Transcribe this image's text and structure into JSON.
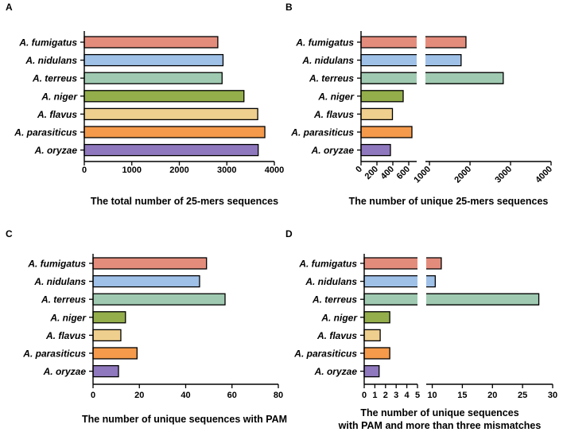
{
  "species": [
    "A. fumigatus",
    "A. nidulans",
    "A. terreus",
    "A. niger",
    "A.  flavus",
    "A. parasiticus",
    "A. oryzae"
  ],
  "colors": [
    "#e48c7c",
    "#9fc1e8",
    "#9fcab1",
    "#93ae4a",
    "#efcf8d",
    "#f59a4b",
    "#8f78bd"
  ],
  "chart_data": [
    {
      "panel": "A",
      "type": "bar",
      "orientation": "horizontal",
      "title": "The total number of 25-mers sequences",
      "xlim": [
        0,
        4000
      ],
      "ticks": [
        0,
        1000,
        2000,
        3000,
        4000
      ],
      "tick_labels": [
        "0",
        "1000",
        "2000",
        "3000",
        "4000"
      ],
      "values": [
        2810,
        2920,
        2900,
        3360,
        3650,
        3800,
        3660
      ]
    },
    {
      "panel": "B",
      "type": "bar",
      "orientation": "horizontal",
      "title": "The number of unique 25-mers sequences",
      "axis_break": [
        700,
        900
      ],
      "xlim": [
        0,
        4000
      ],
      "ticks": [
        0,
        200,
        400,
        600,
        1000,
        2000,
        3000,
        4000
      ],
      "tick_labels": [
        "0",
        "200",
        "400",
        "600",
        "1000",
        "2000",
        "3000",
        "4000"
      ],
      "values": [
        1900,
        1780,
        2820,
        530,
        395,
        640,
        370
      ]
    },
    {
      "panel": "C",
      "type": "bar",
      "orientation": "horizontal",
      "title": "The number of unique sequences with PAM",
      "xlim": [
        0,
        80
      ],
      "ticks": [
        0,
        20,
        40,
        60,
        80
      ],
      "tick_labels": [
        "0",
        "20",
        "40",
        "60",
        "80"
      ],
      "values": [
        49,
        46,
        57,
        14,
        12,
        19,
        11
      ]
    },
    {
      "panel": "D",
      "type": "bar",
      "orientation": "horizontal",
      "title_line1": "The number of unique sequences",
      "title_line2": "with PAM and more than three mismatches",
      "axis_break": [
        5,
        9
      ],
      "xlim": [
        0,
        30
      ],
      "ticks": [
        0,
        1,
        2,
        3,
        4,
        5,
        10,
        15,
        20,
        25,
        30
      ],
      "tick_labels": [
        "0",
        "1",
        "2",
        "3",
        "4",
        "5",
        "10",
        "15",
        "20",
        "25",
        "30"
      ],
      "values": [
        11.5,
        10.5,
        27.7,
        2.4,
        1.5,
        2.4,
        1.4
      ]
    }
  ]
}
